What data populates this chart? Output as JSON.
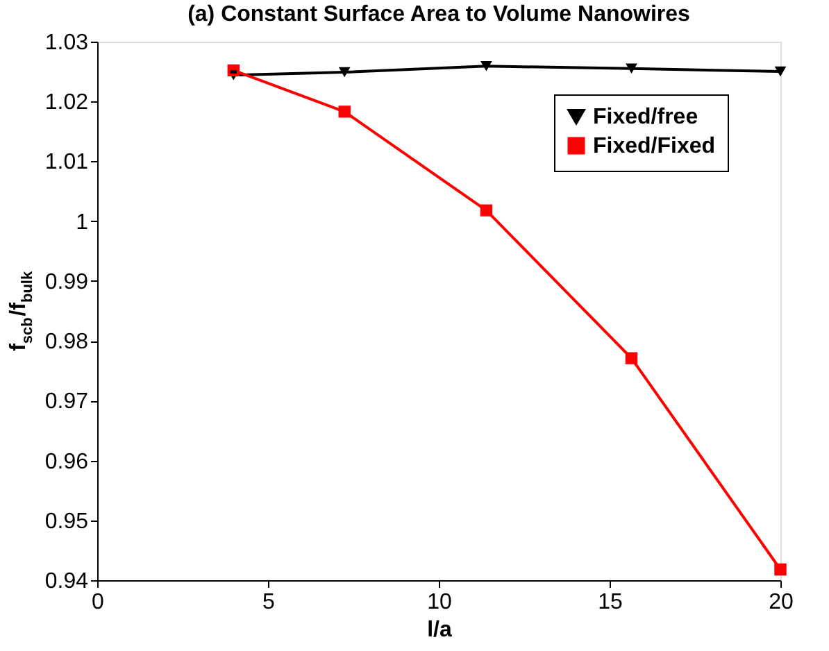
{
  "chart_data": {
    "type": "line",
    "title": "(a) Constant Surface Area to Volume Nanowires",
    "xlabel": "l/a",
    "ylabel": "f$_{scb}$/f$_{bulk}$",
    "x": [
      3.99,
      7.24,
      11.39,
      15.64,
      20
    ],
    "series": [
      {
        "name": "Fixed/free",
        "color": "#000000",
        "marker": "triangle",
        "values": [
          1.0244,
          1.0249,
          1.0259,
          1.0255,
          1.025
        ]
      },
      {
        "name": "Fixed/Fixed",
        "color": "#ff0000",
        "marker": "square",
        "values": [
          1.0252,
          1.0183,
          1.0018,
          0.9771,
          0.9418
        ]
      }
    ],
    "xlim": [
      0,
      20
    ],
    "xticks": [
      0,
      5,
      10,
      15,
      20
    ],
    "ylim": [
      0.94,
      1.03
    ],
    "yticks": [
      0.94,
      0.95,
      0.96,
      0.97,
      0.98,
      0.99,
      {
        "value": 1,
        "label": "1"
      },
      1.01,
      1.02,
      1.03
    ],
    "grid": false,
    "legend": "top right",
    "line_style": "solid"
  }
}
